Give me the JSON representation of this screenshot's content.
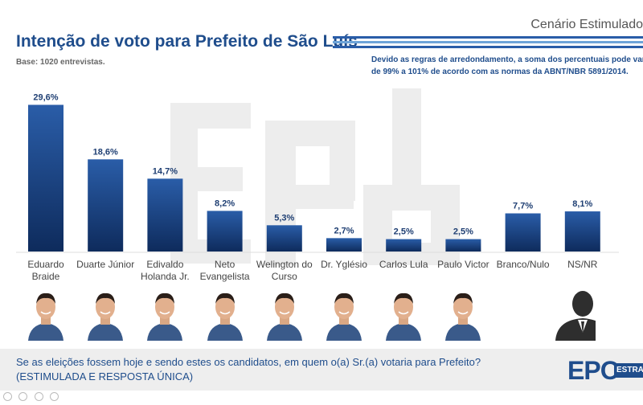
{
  "header": {
    "scenario": "Cenário Estimulado",
    "title": "Intenção de voto para Prefeito de São Luís",
    "base": "Base: 1020 entrevistas.",
    "note_line1": "Devido as regras de arredondamento, a soma dos percentuais pode variar",
    "note_line2": "de 99% a 101% de acordo com as normas da ABNT/NBR 5891/2014."
  },
  "watermark_text": "EPO",
  "colors": {
    "bar_top": "#2a5da8",
    "bar_bottom": "#0e2b5c",
    "title": "#1f4d8c",
    "watermark": "#e8e8e8"
  },
  "chart_data": {
    "type": "bar",
    "categories": [
      "Eduardo Braide",
      "Duarte Júnior",
      "Edivaldo Holanda Jr.",
      "Neto Evangelista",
      "Welington do Curso",
      "Dr. Yglésio",
      "Carlos Lula",
      "Paulo Victor",
      "Branco/Nulo",
      "NS/NR"
    ],
    "category_labels": [
      "Eduardo\nBraide",
      "Duarte Júnior",
      "Edivaldo\nHolanda Jr.",
      "Neto\nEvangelista",
      "Welington do\nCurso",
      "Dr. Yglésio",
      "Carlos Lula",
      "Paulo Victor",
      "Branco/Nulo",
      "NS/NR"
    ],
    "values": [
      29.6,
      18.6,
      14.7,
      8.2,
      5.3,
      2.7,
      2.5,
      2.5,
      7.7,
      8.1
    ],
    "value_labels": [
      "29,6%",
      "18,6%",
      "14,7%",
      "8,2%",
      "5,3%",
      "2,7%",
      "2,5%",
      "2,5%",
      "7,7%",
      "8,1%"
    ],
    "ylim": [
      0,
      30
    ],
    "grid": false
  },
  "photos": [
    "candidate-photo",
    "candidate-photo",
    "candidate-photo",
    "candidate-photo",
    "candidate-photo",
    "candidate-photo",
    "candidate-photo",
    "candidate-photo",
    "none",
    "silhouette"
  ],
  "footer": {
    "question_line1": "Se as eleições fossem hoje e sendo estes os candidatos, em quem o(a) Sr.(a) votaria para Prefeito?",
    "question_line2": "(ESTIMULADA E RESPOSTA ÚNICA)",
    "logo_main": "EPO",
    "logo_strip": "ESTRA"
  }
}
